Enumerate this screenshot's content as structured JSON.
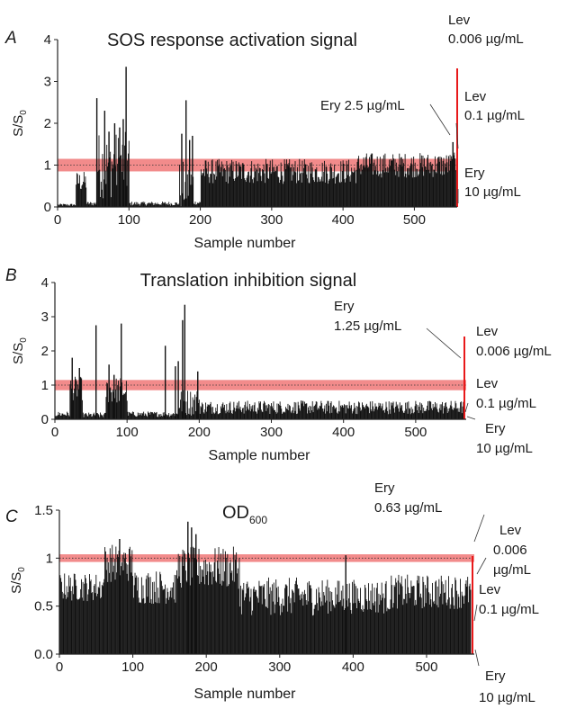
{
  "chart_data": [
    {
      "type": "bar",
      "panel_letter": "A",
      "title": "SOS response activation signal",
      "xlabel": "Sample number",
      "ylabel": "S/S",
      "ylabel_sub": "0",
      "xlim": [
        0,
        560
      ],
      "ylim": [
        0,
        4
      ],
      "xticks": [
        "0",
        "100",
        "200",
        "300",
        "400",
        "500"
      ],
      "yticks": [
        "0",
        "1",
        "2",
        "3",
        "4"
      ],
      "threshold_band": [
        0.85,
        1.15
      ],
      "segments": [
        {
          "start": 1,
          "end": 25,
          "base": 0.05,
          "amp": 0.03
        },
        {
          "start": 26,
          "end": 40,
          "base": 0.6,
          "amp": 0.25
        },
        {
          "start": 41,
          "end": 55,
          "base": 0.08,
          "amp": 0.05
        },
        {
          "start": 56,
          "end": 100,
          "base": 1.0,
          "amp": 0.8
        },
        {
          "start": 101,
          "end": 170,
          "base": 0.08,
          "amp": 0.05
        },
        {
          "start": 171,
          "end": 190,
          "base": 0.5,
          "amp": 0.6
        },
        {
          "start": 191,
          "end": 200,
          "base": 0.1,
          "amp": 0.05
        },
        {
          "start": 201,
          "end": 420,
          "base": 0.85,
          "amp": 0.3
        },
        {
          "start": 421,
          "end": 558,
          "base": 1.0,
          "amp": 0.3
        }
      ],
      "spikes": [
        {
          "x": 55,
          "y": 2.6
        },
        {
          "x": 66,
          "y": 2.3
        },
        {
          "x": 72,
          "y": 1.8
        },
        {
          "x": 80,
          "y": 2.0
        },
        {
          "x": 87,
          "y": 1.9
        },
        {
          "x": 92,
          "y": 2.1
        },
        {
          "x": 96,
          "y": 3.35
        },
        {
          "x": 174,
          "y": 1.75
        },
        {
          "x": 180,
          "y": 2.55
        },
        {
          "x": 185,
          "y": 1.6
        },
        {
          "x": 189,
          "y": 1.7
        },
        {
          "x": 554,
          "y": 1.55
        }
      ],
      "annotations": [
        {
          "label": "Ery 2.5 µg/mL",
          "x": 520
        },
        {
          "label": "Lev 0.006 µg/mL",
          "x": 559,
          "y": 3.3
        },
        {
          "label": "Lev 0.1 µg/mL",
          "x": 559,
          "y": 1.6
        },
        {
          "label": "Ery 10 µg/mL",
          "x": 559,
          "y": 0
        }
      ]
    },
    {
      "type": "bar",
      "panel_letter": "B",
      "title": "Translation inhibition signal",
      "xlabel": "Sample number",
      "ylabel": "S/S",
      "ylabel_sub": "0",
      "xlim": [
        0,
        570
      ],
      "ylim": [
        0,
        4
      ],
      "xticks": [
        "0",
        "100",
        "200",
        "300",
        "400",
        "500"
      ],
      "yticks": [
        "0",
        "1",
        "2",
        "3",
        "4"
      ],
      "threshold_band": [
        0.85,
        1.15
      ],
      "segments": [
        {
          "start": 1,
          "end": 20,
          "base": 0.15,
          "amp": 0.08
        },
        {
          "start": 21,
          "end": 38,
          "base": 0.9,
          "amp": 0.35
        },
        {
          "start": 39,
          "end": 70,
          "base": 0.12,
          "amp": 0.08
        },
        {
          "start": 71,
          "end": 100,
          "base": 0.85,
          "amp": 0.4
        },
        {
          "start": 101,
          "end": 170,
          "base": 0.15,
          "amp": 0.08
        },
        {
          "start": 171,
          "end": 200,
          "base": 0.5,
          "amp": 0.4
        },
        {
          "start": 201,
          "end": 568,
          "base": 0.35,
          "amp": 0.2
        }
      ],
      "spikes": [
        {
          "x": 24,
          "y": 1.8
        },
        {
          "x": 34,
          "y": 1.5
        },
        {
          "x": 57,
          "y": 2.75
        },
        {
          "x": 75,
          "y": 1.6
        },
        {
          "x": 82,
          "y": 1.3
        },
        {
          "x": 92,
          "y": 2.8
        },
        {
          "x": 153,
          "y": 2.15
        },
        {
          "x": 167,
          "y": 1.55
        },
        {
          "x": 171,
          "y": 1.7
        },
        {
          "x": 177,
          "y": 2.9
        },
        {
          "x": 180,
          "y": 3.35
        },
        {
          "x": 198,
          "y": 1.4
        }
      ],
      "annotations": [
        {
          "label": "Ery 1.25 µg/mL",
          "x": 565
        },
        {
          "label": "Lev 0.006 µg/mL",
          "x": 569,
          "y": 2.05
        },
        {
          "label": "Lev 0.1 µg/mL",
          "x": 569,
          "y": 0.55
        },
        {
          "label": "Ery 10 µg/mL",
          "x": 569,
          "y": 0
        }
      ]
    },
    {
      "type": "bar",
      "panel_letter": "C",
      "title": "OD",
      "title_sub": "600",
      "xlabel": "Sample number",
      "ylabel": "S/S",
      "ylabel_sub": "0",
      "xlim": [
        0,
        565
      ],
      "ylim": [
        0,
        1.5
      ],
      "xticks": [
        "0",
        "100",
        "200",
        "300",
        "400",
        "500"
      ],
      "yticks": [
        "0.0",
        "0.5",
        "1",
        "1.5"
      ],
      "threshold_band": [
        0.96,
        1.04
      ],
      "segments": [
        {
          "start": 1,
          "end": 60,
          "base": 0.7,
          "amp": 0.15
        },
        {
          "start": 61,
          "end": 100,
          "base": 0.95,
          "amp": 0.2
        },
        {
          "start": 101,
          "end": 160,
          "base": 0.7,
          "amp": 0.18
        },
        {
          "start": 161,
          "end": 245,
          "base": 0.9,
          "amp": 0.22
        },
        {
          "start": 246,
          "end": 360,
          "base": 0.6,
          "amp": 0.2
        },
        {
          "start": 361,
          "end": 450,
          "base": 0.6,
          "amp": 0.18
        },
        {
          "start": 451,
          "end": 560,
          "base": 0.65,
          "amp": 0.18
        }
      ],
      "spikes": [
        {
          "x": 82,
          "y": 1.2
        },
        {
          "x": 175,
          "y": 1.38
        },
        {
          "x": 180,
          "y": 1.32
        },
        {
          "x": 186,
          "y": 1.25
        },
        {
          "x": 390,
          "y": 1.03
        }
      ],
      "annotations": [
        {
          "label": "Ery 0.63 µg/mL",
          "x": 561
        },
        {
          "label": "Lev 0.006 µg/mL",
          "x": 563,
          "y": 0.78
        },
        {
          "label": "Lev 0.1 µg/mL",
          "x": 563,
          "y": 0.35
        },
        {
          "label": "Ery 10 µg/mL",
          "x": 563,
          "y": 0
        }
      ]
    }
  ],
  "colors": {
    "bars": "#111111",
    "threshold_fill": "#f28b8b",
    "threshold_dots": "#333333",
    "control_line": "#e8191a"
  }
}
